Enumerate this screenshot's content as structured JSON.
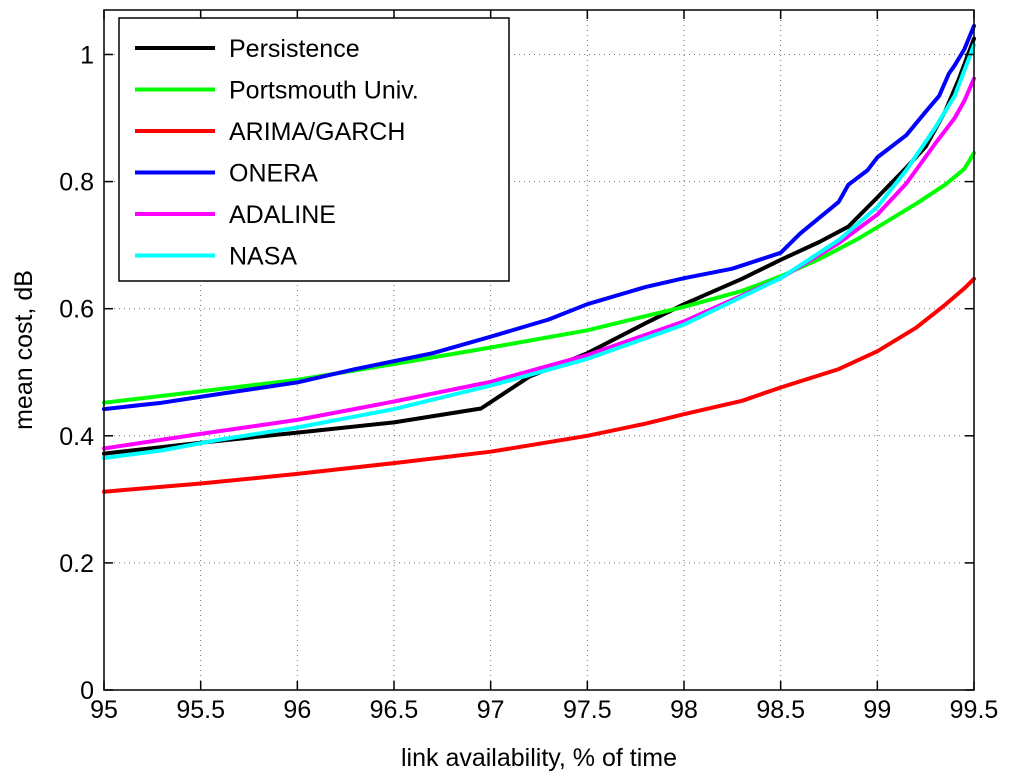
{
  "chart_data": {
    "type": "line",
    "xlabel": "link availability, % of time",
    "ylabel": "mean cost, dB",
    "xlim": [
      95,
      99.5
    ],
    "ylim": [
      0,
      1.07
    ],
    "xticks": [
      "95",
      "95.5",
      "96",
      "96.5",
      "97",
      "97.5",
      "98",
      "98.5",
      "99",
      "99.5"
    ],
    "yticks": [
      "0",
      "0.2",
      "0.4",
      "0.6",
      "0.8",
      "1"
    ],
    "xtick_values": [
      95,
      95.5,
      96,
      96.5,
      97,
      97.5,
      98,
      98.5,
      99,
      99.5
    ],
    "ytick_values": [
      0,
      0.2,
      0.4,
      0.6,
      0.8,
      1.0
    ],
    "grid": true,
    "legend_position": "top-left",
    "series": [
      {
        "name": "Persistence",
        "color": "#000000",
        "points": [
          [
            95.0,
            0.372
          ],
          [
            95.5,
            0.389
          ],
          [
            96.0,
            0.405
          ],
          [
            96.5,
            0.421
          ],
          [
            96.95,
            0.443
          ],
          [
            97.2,
            0.493
          ],
          [
            97.5,
            0.53
          ],
          [
            97.8,
            0.577
          ],
          [
            98.0,
            0.607
          ],
          [
            98.3,
            0.647
          ],
          [
            98.5,
            0.677
          ],
          [
            98.7,
            0.705
          ],
          [
            98.85,
            0.729
          ],
          [
            99.0,
            0.775
          ],
          [
            99.15,
            0.822
          ],
          [
            99.25,
            0.855
          ],
          [
            99.35,
            0.91
          ],
          [
            99.42,
            0.96
          ],
          [
            99.5,
            1.025
          ]
        ]
      },
      {
        "name": "Portsmouth Univ.",
        "color": "#00ff00",
        "points": [
          [
            95.0,
            0.452
          ],
          [
            95.5,
            0.47
          ],
          [
            96.0,
            0.488
          ],
          [
            96.5,
            0.513
          ],
          [
            97.0,
            0.539
          ],
          [
            97.5,
            0.566
          ],
          [
            98.0,
            0.603
          ],
          [
            98.3,
            0.628
          ],
          [
            98.5,
            0.651
          ],
          [
            98.7,
            0.678
          ],
          [
            98.9,
            0.71
          ],
          [
            99.0,
            0.728
          ],
          [
            99.2,
            0.765
          ],
          [
            99.35,
            0.795
          ],
          [
            99.45,
            0.82
          ],
          [
            99.5,
            0.845
          ]
        ]
      },
      {
        "name": "ARIMA/GARCH",
        "color": "#ff0000",
        "points": [
          [
            95.0,
            0.312
          ],
          [
            95.5,
            0.325
          ],
          [
            96.0,
            0.34
          ],
          [
            96.5,
            0.357
          ],
          [
            97.0,
            0.375
          ],
          [
            97.5,
            0.4
          ],
          [
            97.8,
            0.419
          ],
          [
            98.0,
            0.434
          ],
          [
            98.3,
            0.455
          ],
          [
            98.5,
            0.476
          ],
          [
            98.8,
            0.505
          ],
          [
            99.0,
            0.533
          ],
          [
            99.2,
            0.57
          ],
          [
            99.35,
            0.606
          ],
          [
            99.45,
            0.632
          ],
          [
            99.5,
            0.647
          ]
        ]
      },
      {
        "name": "ONERA",
        "color": "#0000ff",
        "points": [
          [
            95.0,
            0.442
          ],
          [
            95.3,
            0.452
          ],
          [
            95.6,
            0.466
          ],
          [
            96.0,
            0.484
          ],
          [
            96.3,
            0.505
          ],
          [
            96.7,
            0.53
          ],
          [
            97.0,
            0.556
          ],
          [
            97.3,
            0.583
          ],
          [
            97.5,
            0.607
          ],
          [
            97.8,
            0.634
          ],
          [
            98.0,
            0.648
          ],
          [
            98.25,
            0.663
          ],
          [
            98.5,
            0.688
          ],
          [
            98.6,
            0.718
          ],
          [
            98.7,
            0.743
          ],
          [
            98.8,
            0.768
          ],
          [
            98.85,
            0.795
          ],
          [
            98.95,
            0.818
          ],
          [
            99.0,
            0.838
          ],
          [
            99.15,
            0.873
          ],
          [
            99.25,
            0.91
          ],
          [
            99.32,
            0.935
          ],
          [
            99.37,
            0.97
          ],
          [
            99.4,
            0.983
          ],
          [
            99.45,
            1.008
          ],
          [
            99.5,
            1.045
          ]
        ]
      },
      {
        "name": "ADALINE",
        "color": "#ff00ff",
        "points": [
          [
            95.0,
            0.38
          ],
          [
            95.5,
            0.403
          ],
          [
            96.0,
            0.425
          ],
          [
            96.5,
            0.454
          ],
          [
            97.0,
            0.485
          ],
          [
            97.5,
            0.527
          ],
          [
            98.0,
            0.58
          ],
          [
            98.5,
            0.648
          ],
          [
            98.8,
            0.703
          ],
          [
            99.0,
            0.748
          ],
          [
            99.15,
            0.797
          ],
          [
            99.3,
            0.86
          ],
          [
            99.4,
            0.9
          ],
          [
            99.45,
            0.927
          ],
          [
            99.5,
            0.962
          ]
        ]
      },
      {
        "name": "NASA",
        "color": "#00ffff",
        "points": [
          [
            95.0,
            0.365
          ],
          [
            95.3,
            0.377
          ],
          [
            95.6,
            0.394
          ],
          [
            96.0,
            0.413
          ],
          [
            96.5,
            0.442
          ],
          [
            97.0,
            0.479
          ],
          [
            97.5,
            0.521
          ],
          [
            98.0,
            0.575
          ],
          [
            98.5,
            0.648
          ],
          [
            98.8,
            0.708
          ],
          [
            99.0,
            0.76
          ],
          [
            99.15,
            0.818
          ],
          [
            99.3,
            0.885
          ],
          [
            99.4,
            0.935
          ],
          [
            99.5,
            1.015
          ]
        ]
      }
    ]
  }
}
